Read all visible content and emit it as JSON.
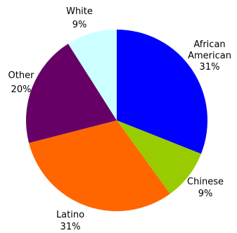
{
  "chart_data": {
    "type": "pie",
    "title": "",
    "slices": [
      {
        "label_lines": [
          "African",
          "American"
        ],
        "value": 31,
        "value_label": "31%",
        "color": "#0000ff"
      },
      {
        "label_lines": [
          "Chinese"
        ],
        "value": 9,
        "value_label": "9%",
        "color": "#99cc00"
      },
      {
        "label_lines": [
          "Latino"
        ],
        "value": 31,
        "value_label": "31%",
        "color": "#ff6600"
      },
      {
        "label_lines": [
          "Other"
        ],
        "value": 20,
        "value_label": "20%",
        "color": "#660066"
      },
      {
        "label_lines": [
          "White"
        ],
        "value": 9,
        "value_label": "9%",
        "color": "#ccffff"
      }
    ],
    "start": "12 o'clock",
    "direction": "clockwise",
    "legend": "none"
  }
}
